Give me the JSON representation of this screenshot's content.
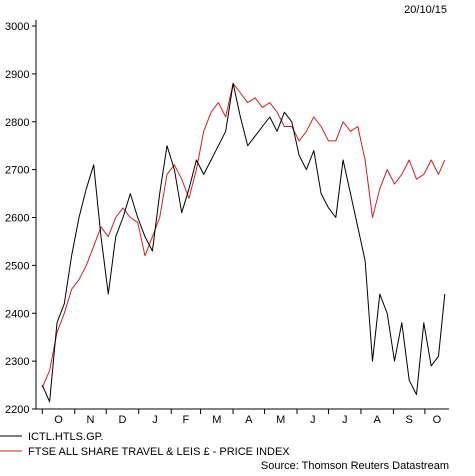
{
  "chart_data": {
    "type": "line",
    "date": "20/10/15",
    "source": "Source: Thomson Reuters Datastream",
    "ylim": [
      2200,
      3000
    ],
    "yticks": [
      2200,
      2300,
      2400,
      2500,
      2600,
      2700,
      2800,
      2900,
      3000
    ],
    "x_tick_labels": [
      "O",
      "N",
      "D",
      "J",
      "F",
      "M",
      "A",
      "M",
      "J",
      "J",
      "A",
      "S",
      "O"
    ],
    "legend_position": "bottom-left",
    "colors": {
      "series1": "#000000",
      "series2": "#cc2222"
    },
    "x": [
      "2014-10-01",
      "2014-10-08",
      "2014-10-15",
      "2014-10-22",
      "2014-10-29",
      "2014-11-05",
      "2014-11-12",
      "2014-11-19",
      "2014-11-26",
      "2014-12-03",
      "2014-12-10",
      "2014-12-17",
      "2014-12-24",
      "2014-12-31",
      "2015-01-07",
      "2015-01-14",
      "2015-01-21",
      "2015-01-28",
      "2015-02-04",
      "2015-02-11",
      "2015-02-18",
      "2015-02-25",
      "2015-03-04",
      "2015-03-11",
      "2015-03-18",
      "2015-03-25",
      "2015-04-01",
      "2015-04-08",
      "2015-04-15",
      "2015-04-22",
      "2015-04-29",
      "2015-05-06",
      "2015-05-13",
      "2015-05-20",
      "2015-05-27",
      "2015-06-03",
      "2015-06-10",
      "2015-06-17",
      "2015-06-24",
      "2015-07-01",
      "2015-07-08",
      "2015-07-15",
      "2015-07-22",
      "2015-07-29",
      "2015-08-05",
      "2015-08-12",
      "2015-08-19",
      "2015-08-26",
      "2015-09-02",
      "2015-09-09",
      "2015-09-16",
      "2015-09-23",
      "2015-09-30",
      "2015-10-07",
      "2015-10-14",
      "2015-10-20"
    ],
    "series": [
      {
        "name": "ICTL.HTLS.GP.",
        "values": [
          2250,
          2215,
          2380,
          2420,
          2520,
          2600,
          2660,
          2710,
          2560,
          2440,
          2560,
          2600,
          2650,
          2600,
          2560,
          2530,
          2650,
          2750,
          2700,
          2610,
          2660,
          2720,
          2690,
          2720,
          2750,
          2780,
          2880,
          2810,
          2750,
          2770,
          2790,
          2810,
          2780,
          2820,
          2800,
          2730,
          2700,
          2740,
          2650,
          2620,
          2600,
          2720,
          2650,
          2580,
          2510,
          2300,
          2440,
          2400,
          2300,
          2380,
          2260,
          2230,
          2380,
          2290,
          2310,
          2440
        ]
      },
      {
        "name": "FTSE ALL SHARE TRAVEL & LEIS £ - PRICE INDEX",
        "values": [
          2245,
          2280,
          2360,
          2400,
          2450,
          2470,
          2500,
          2540,
          2580,
          2560,
          2600,
          2620,
          2600,
          2590,
          2520,
          2560,
          2600,
          2690,
          2710,
          2680,
          2640,
          2700,
          2780,
          2820,
          2840,
          2810,
          2880,
          2860,
          2840,
          2850,
          2830,
          2840,
          2820,
          2790,
          2790,
          2760,
          2780,
          2810,
          2790,
          2760,
          2760,
          2800,
          2780,
          2790,
          2720,
          2600,
          2660,
          2700,
          2670,
          2690,
          2720,
          2680,
          2690,
          2720,
          2690,
          2720
        ]
      }
    ]
  }
}
